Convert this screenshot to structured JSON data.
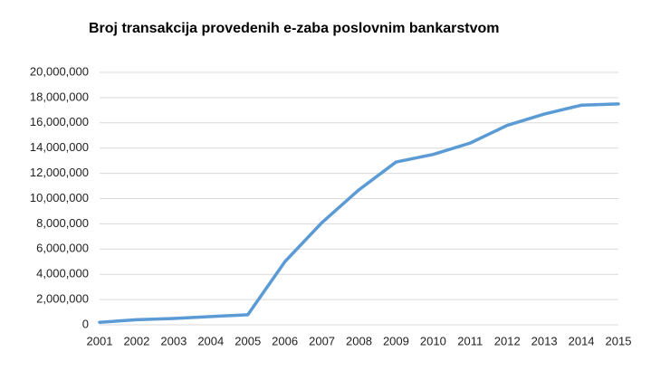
{
  "chart_data": {
    "type": "line",
    "title": "Broj transakcija provedenih e-zaba poslovnim bankarstvom",
    "x": [
      2001,
      2002,
      2003,
      2004,
      2005,
      2006,
      2007,
      2008,
      2009,
      2010,
      2011,
      2012,
      2013,
      2014,
      2015
    ],
    "values": [
      200000,
      400000,
      500000,
      650000,
      800000,
      5000000,
      8100000,
      10700000,
      12900000,
      13500000,
      14400000,
      15800000,
      16700000,
      17400000,
      17500000
    ],
    "color": "#5b9bd5",
    "xlim": [
      2001,
      2015
    ],
    "xticks": [
      2001,
      2002,
      2003,
      2004,
      2005,
      2006,
      2007,
      2008,
      2009,
      2010,
      2011,
      2012,
      2013,
      2014,
      2015
    ],
    "ylim": [
      0,
      20000000
    ],
    "yticks": [
      0,
      {
        "value": 2000000,
        "label": "2,000,000"
      },
      {
        "value": 4000000,
        "label": "4,000,000"
      },
      {
        "value": 6000000,
        "label": "6,000,000"
      },
      {
        "value": 8000000,
        "label": "8,000,000"
      },
      {
        "value": 10000000,
        "label": "10,000,000"
      },
      {
        "value": 12000000,
        "label": "12,000,000"
      },
      {
        "value": 14000000,
        "label": "14,000,000"
      },
      {
        "value": 16000000,
        "label": "16,000,000"
      },
      {
        "value": 18000000,
        "label": "18,000,000"
      },
      {
        "value": 20000000,
        "label": "20,000,000"
      }
    ],
    "grid": true
  }
}
